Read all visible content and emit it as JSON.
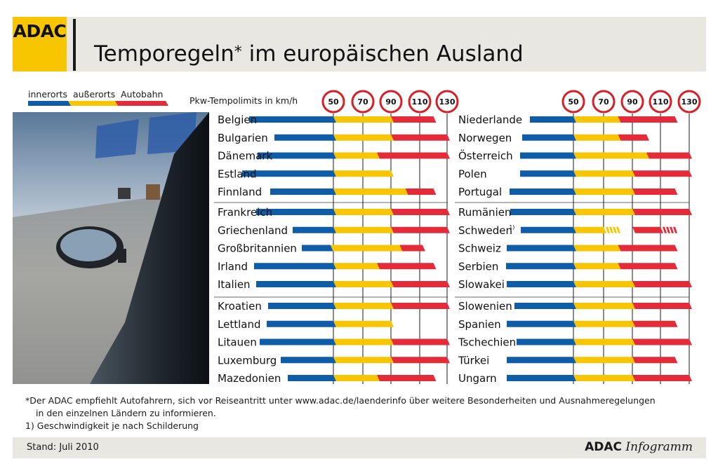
{
  "header": {
    "logo": "ADAC",
    "title": "Temporegeln",
    "title_star": "*",
    "title_rest": "im europäischen Ausland"
  },
  "legend": {
    "items": [
      {
        "label": "innerorts",
        "color": "#0f5ca8"
      },
      {
        "label": "außerorts",
        "color": "#f7c600"
      },
      {
        "label": "Autobahn",
        "color": "#e42b3a"
      }
    ]
  },
  "chart_data": {
    "type": "bar",
    "title": "Pkw-Tempolimits in km/h",
    "scale_marks": [
      50,
      70,
      90,
      110,
      130
    ],
    "series": [
      {
        "name": "innerorts"
      },
      {
        "name": "außerorts"
      },
      {
        "name": "Autobahn"
      }
    ],
    "columns": [
      {
        "groups": [
          [
            {
              "country": "Belgien",
              "innerorts": 50,
              "ausserorts": 90,
              "autobahn": 120
            },
            {
              "country": "Bulgarien",
              "innerorts": 50,
              "ausserorts": 90,
              "autobahn": 130
            },
            {
              "country": "Dänemark",
              "innerorts": 50,
              "ausserorts": 80,
              "autobahn": 130
            },
            {
              "country": "Estland",
              "innerorts": 50,
              "ausserorts": 90,
              "autobahn": null
            },
            {
              "country": "Finnland",
              "innerorts": 50,
              "ausserorts": 100,
              "autobahn": 120
            }
          ],
          [
            {
              "country": "Frankreich",
              "innerorts": 50,
              "ausserorts": 90,
              "autobahn": 130
            },
            {
              "country": "Griechenland",
              "innerorts": 50,
              "ausserorts": 90,
              "autobahn": 130
            },
            {
              "country": "Großbritannien",
              "innerorts": 48,
              "ausserorts": 96,
              "autobahn": 112
            },
            {
              "country": "Irland",
              "innerorts": 50,
              "ausserorts": 80,
              "autobahn": 120
            },
            {
              "country": "Italien",
              "innerorts": 50,
              "ausserorts": 90,
              "autobahn": 130
            }
          ],
          [
            {
              "country": "Kroatien",
              "innerorts": 50,
              "ausserorts": 90,
              "autobahn": 130
            },
            {
              "country": "Lettland",
              "innerorts": 50,
              "ausserorts": 90,
              "autobahn": null
            },
            {
              "country": "Litauen",
              "innerorts": 50,
              "ausserorts": 90,
              "autobahn": 130
            },
            {
              "country": "Luxemburg",
              "innerorts": 50,
              "ausserorts": 90,
              "autobahn": 130
            },
            {
              "country": "Mazedonien",
              "innerorts": 50,
              "ausserorts": 80,
              "autobahn": 120
            }
          ]
        ]
      },
      {
        "groups": [
          [
            {
              "country": "Niederlande",
              "innerorts": 50,
              "ausserorts": 80,
              "autobahn": 120
            },
            {
              "country": "Norwegen",
              "innerorts": 50,
              "ausserorts": 80,
              "autobahn": 100
            },
            {
              "country": "Österreich",
              "innerorts": 50,
              "ausserorts": 100,
              "autobahn": 130
            },
            {
              "country": "Polen",
              "innerorts": 50,
              "ausserorts": 90,
              "autobahn": 130
            },
            {
              "country": "Portugal",
              "innerorts": 50,
              "ausserorts": 90,
              "autobahn": 120
            }
          ],
          [
            {
              "country": "Rumänien",
              "innerorts": 50,
              "ausserorts": 90,
              "autobahn": 130
            },
            {
              "country": "Schweden",
              "note": "1)",
              "innerorts": 50,
              "ausserorts": 70,
              "ausserorts_max": 90,
              "autobahn": 110,
              "autobahn_max": 120
            },
            {
              "country": "Schweiz",
              "innerorts": 50,
              "ausserorts": 80,
              "autobahn": 120
            },
            {
              "country": "Serbien",
              "innerorts": 50,
              "ausserorts": 80,
              "autobahn": 120
            },
            {
              "country": "Slowakei",
              "innerorts": 50,
              "ausserorts": 90,
              "autobahn": 130
            }
          ],
          [
            {
              "country": "Slowenien",
              "innerorts": 50,
              "ausserorts": 90,
              "autobahn": 130
            },
            {
              "country": "Spanien",
              "innerorts": 50,
              "ausserorts": 90,
              "autobahn": 120
            },
            {
              "country": "Tschechien",
              "innerorts": 50,
              "ausserorts": 90,
              "autobahn": 130
            },
            {
              "country": "Türkei",
              "innerorts": 50,
              "ausserorts": 90,
              "autobahn": 120
            },
            {
              "country": "Ungarn",
              "innerorts": 50,
              "ausserorts": 90,
              "autobahn": 130
            }
          ]
        ]
      }
    ]
  },
  "footnote": {
    "line1": "*Der ADAC empfiehlt Autofahrern, sich vor Reiseantritt unter www.adac.de/laenderinfo über weitere Besonderheiten und Ausnahmeregelungen",
    "line2": "in den einzelnen Ländern zu informieren.",
    "note1": "1) Geschwindigkeit je nach Schilderung"
  },
  "footer": {
    "stand": "Stand: Juli 2010",
    "brand_bold": "ADAC",
    "brand_italic": "Infogramm"
  },
  "colors": {
    "blue": "#0f5ca8",
    "yellow": "#f7c600",
    "red": "#e42b3a",
    "sign_ring": "#d91f26"
  }
}
